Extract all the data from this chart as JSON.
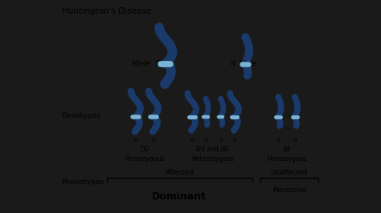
{
  "title": "Huntington's Disease",
  "bg_color": "#f0f0f0",
  "side_bg": "#1a1a1a",
  "chrom_color": "#1a3a6b",
  "centromere_color": "#7ab3d4",
  "text_color": "#000000",
  "genotype_labels": [
    "DD\nHomozygous",
    "Dd and dD\nHeterozygous",
    "dd\nHomozygous"
  ],
  "phenotype_labels": [
    "Affected",
    "Unaffected"
  ],
  "phenotype_sub": [
    "Dominant",
    "Recessive"
  ],
  "row_label1": "Genotypes",
  "row_label2": "Phenotypes"
}
